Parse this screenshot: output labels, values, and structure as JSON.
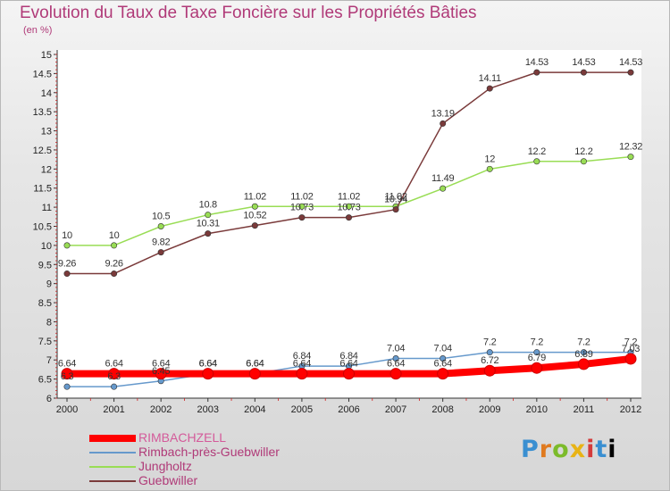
{
  "title": "Evolution du Taux de Taxe Foncière sur les Propriétés Bâties",
  "unit_label": "(en %)",
  "logo_letters": [
    "P",
    "r",
    "o",
    "x",
    "i",
    "t",
    "i"
  ],
  "chart_data": {
    "type": "line",
    "x": [
      "2000",
      "2001",
      "2002",
      "2003",
      "2004",
      "2005",
      "2006",
      "2007",
      "2008",
      "2009",
      "2010",
      "2011",
      "2012"
    ],
    "y_ticks": [
      "6",
      "6.5",
      "7",
      "7.5",
      "8",
      "8.5",
      "9",
      "9.5",
      "10",
      "10.5",
      "11",
      "11.5",
      "12",
      "12.5",
      "13",
      "13.5",
      "14",
      "14.5",
      "15"
    ],
    "ylim": [
      6,
      15
    ],
    "grid": false,
    "legend_position": "bottom-left",
    "series": [
      {
        "name": "RIMBACHZELL",
        "color": "#ff0000",
        "thick": true,
        "values": [
          6.64,
          6.64,
          6.64,
          6.64,
          6.64,
          6.64,
          6.64,
          6.64,
          6.64,
          6.72,
          6.79,
          6.89,
          7.03
        ],
        "labels": [
          "6.64",
          "6.64",
          "6.64",
          "6.64",
          "6.64",
          "6.64",
          "6.64",
          "6.64",
          "6.64",
          "6.72",
          "6.79",
          "6.89",
          "7.03"
        ]
      },
      {
        "name": "Rimbach-près-Guebwiller",
        "color": "#6699cc",
        "values": [
          6.3,
          6.3,
          6.45,
          6.64,
          6.64,
          6.84,
          6.84,
          7.04,
          7.04,
          7.2,
          7.2,
          7.2,
          7.2
        ],
        "labels": [
          "6.3",
          "6.3",
          "6.45",
          "6.64",
          "6.64",
          "6.84",
          "6.84",
          "7.04",
          "7.04",
          "7.2",
          "7.2",
          "7.2",
          "7.2"
        ]
      },
      {
        "name": "Jungholtz",
        "color": "#99dd55",
        "values": [
          10,
          10,
          10.5,
          10.8,
          11.02,
          11.02,
          11.02,
          11.02,
          11.49,
          12,
          12.2,
          12.2,
          12.32
        ],
        "labels": [
          "10",
          "10",
          "10.5",
          "10.8",
          "11.02",
          "11.02",
          "11.02",
          "11.02",
          "11.49",
          "12",
          "12.2",
          "12.2",
          "12.32"
        ]
      },
      {
        "name": "Guebwiller",
        "color": "#7a3a3a",
        "values": [
          9.26,
          9.26,
          9.82,
          10.31,
          10.52,
          10.73,
          10.73,
          10.94,
          13.19,
          14.11,
          14.53,
          14.53,
          14.53
        ],
        "labels": [
          "9.26",
          "9.26",
          "9.82",
          "10.31",
          "10.52",
          "10.73",
          "10.73",
          "10.94",
          "13.19",
          "14.11",
          "14.53",
          "14.53",
          "14.53"
        ]
      }
    ]
  }
}
